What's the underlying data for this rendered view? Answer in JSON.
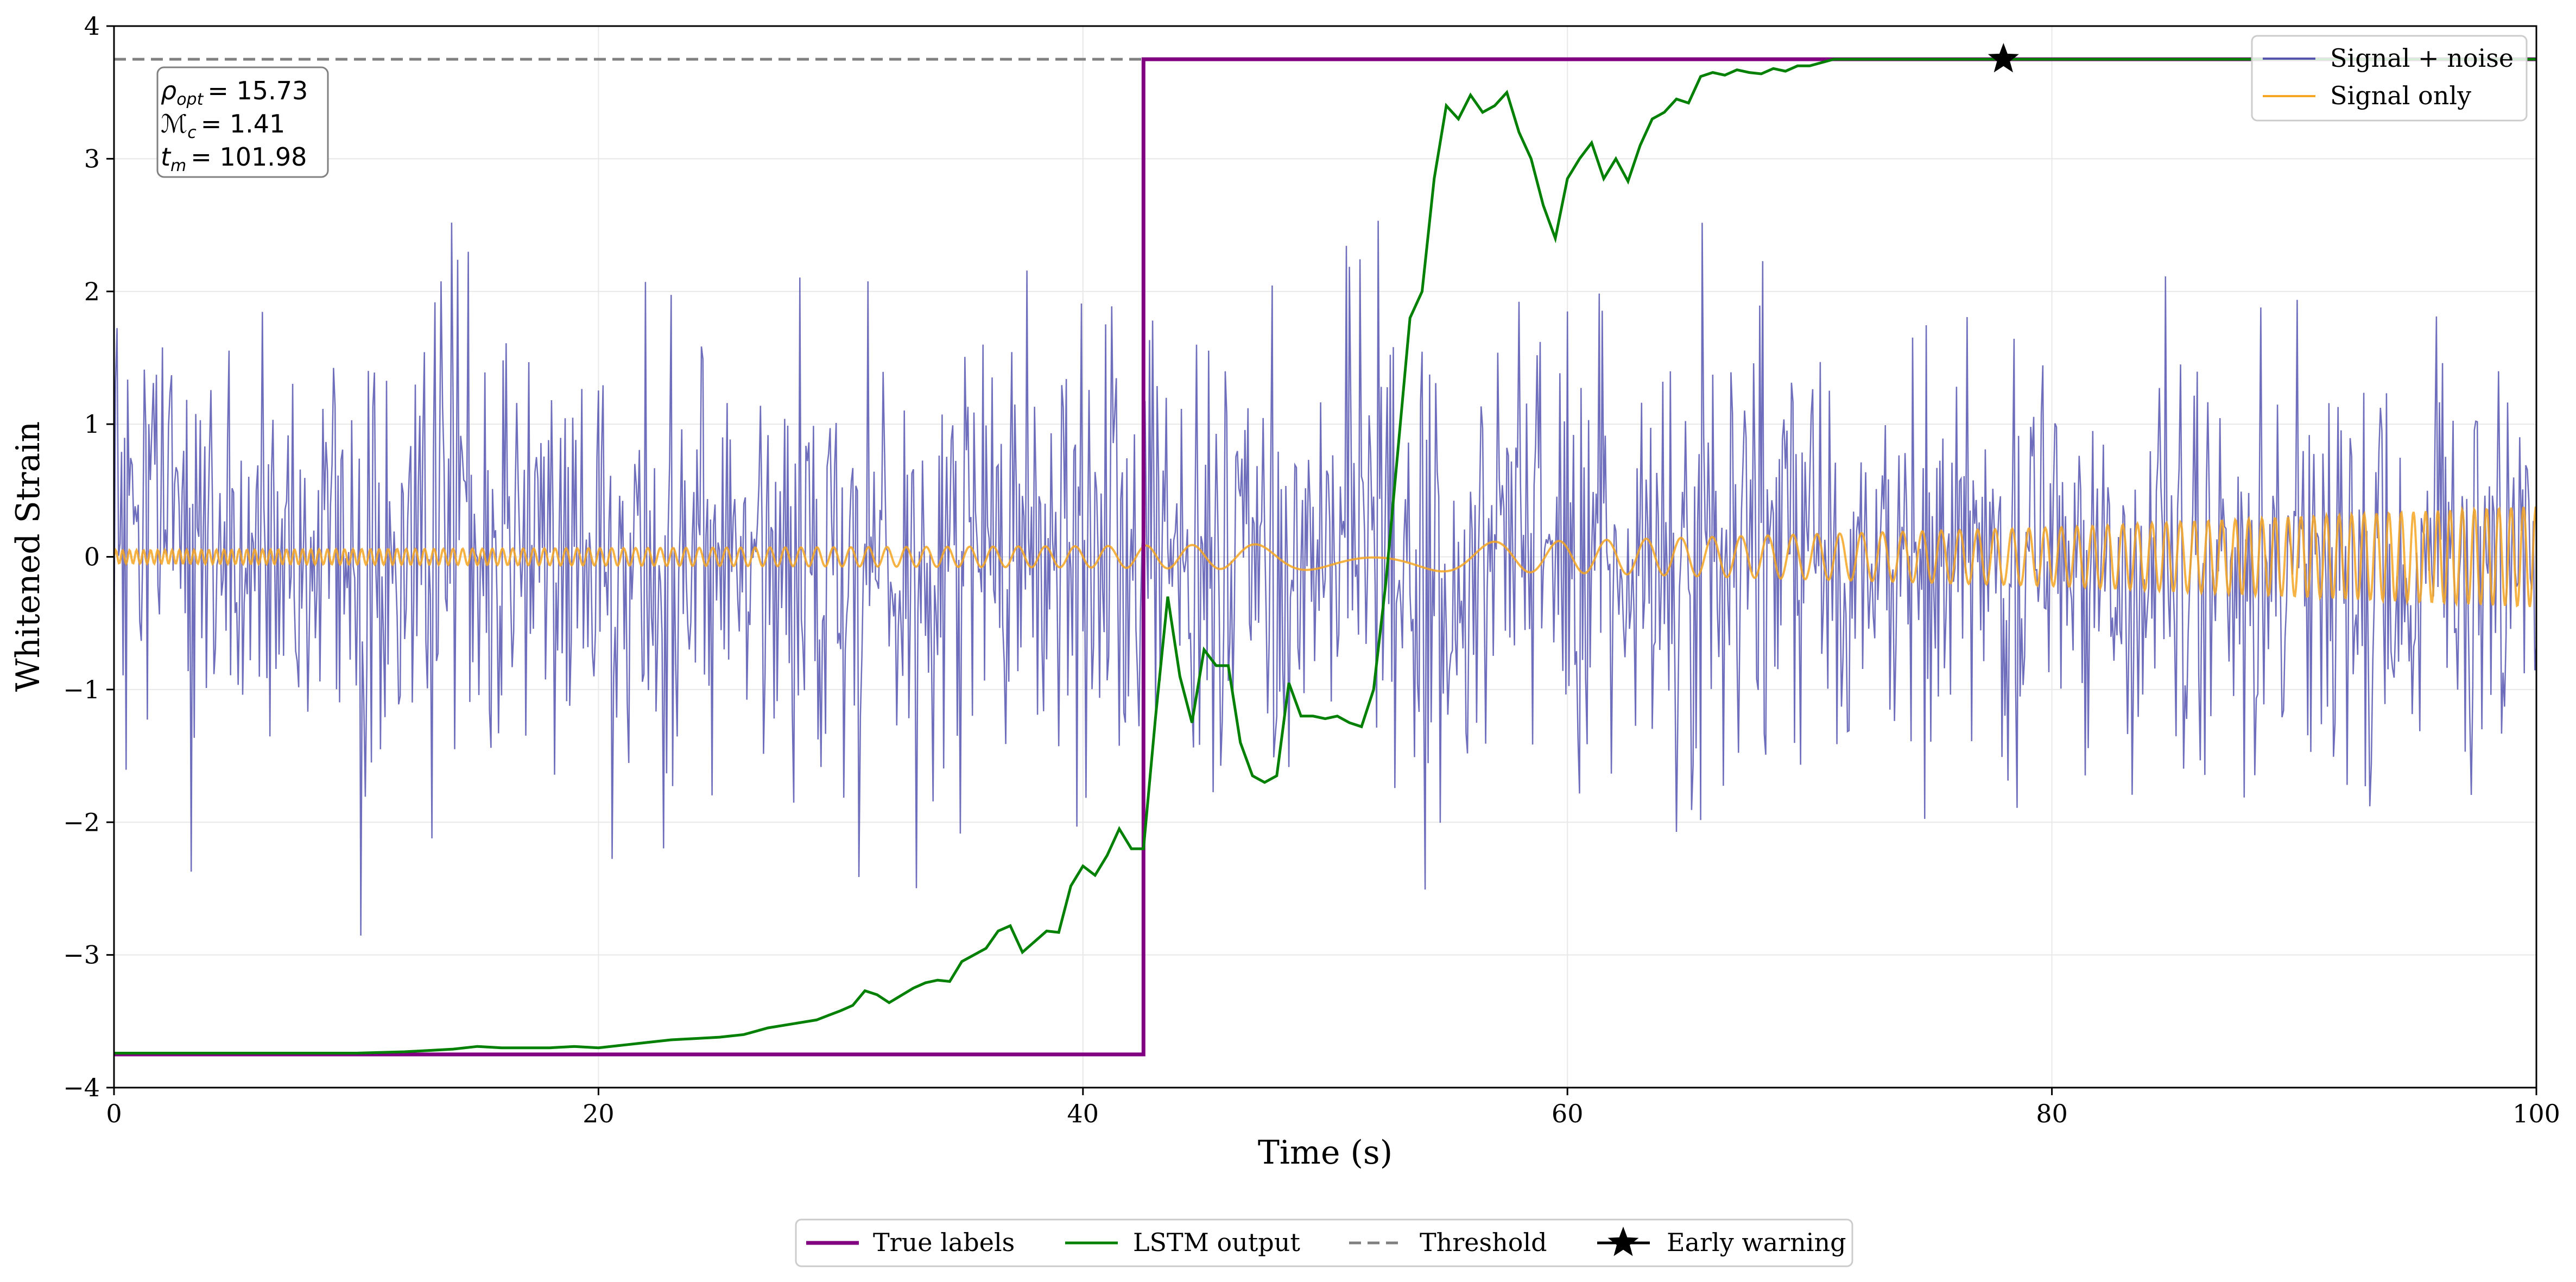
{
  "chart_data": {
    "type": "line",
    "xlabel": "Time (s)",
    "ylabel": "Whitened Strain",
    "xlim": [
      0,
      100
    ],
    "ylim": [
      -4,
      4
    ],
    "xticks": [
      0,
      20,
      40,
      60,
      80,
      100
    ],
    "yticks": [
      -4,
      -3,
      -2,
      -1,
      0,
      1,
      2,
      3,
      4
    ],
    "grid": true,
    "threshold": 3.75,
    "label_levels": [
      -3.75,
      3.75
    ],
    "label_step_time": 42.5,
    "early_warning": {
      "x": 78.0,
      "y": 3.75
    },
    "annotation": {
      "rho_sym": "ρ",
      "rho_sub": "opt",
      "rho_value": "= 15.73",
      "mc_sym": "ℳ",
      "mc_sub": "c",
      "mc_value": "= 1.41",
      "tm_sym": "t",
      "tm_sub": "m",
      "tm_value": "= 101.98"
    },
    "legend_top": [
      {
        "name": "Signal + noise",
        "color": "#5555b0"
      },
      {
        "name": "Signal only",
        "color": "#f5a623"
      }
    ],
    "legend_bottom": [
      {
        "name": "True labels",
        "color": "#800080"
      },
      {
        "name": "LSTM output",
        "color": "#008000"
      },
      {
        "name": "Threshold",
        "color": "#808080"
      },
      {
        "name": "Early warning",
        "color": "#000000"
      }
    ],
    "series": [
      {
        "name": "LSTM output",
        "x": [
          0,
          5,
          10,
          12,
          13,
          14,
          15,
          16,
          17,
          18,
          19,
          20,
          21,
          22,
          23,
          24,
          25,
          26,
          27,
          28,
          29,
          30,
          30.5,
          31,
          31.5,
          32,
          33,
          33.5,
          34,
          34.5,
          35,
          36,
          36.5,
          37,
          37.5,
          38,
          38.5,
          39,
          39.5,
          40,
          40.5,
          41,
          41.5,
          42,
          42.5,
          43,
          43.5,
          44,
          44.5,
          45,
          45.5,
          46,
          46.5,
          47,
          47.5,
          48,
          48.5,
          49,
          49.5,
          50,
          50.5,
          51,
          51.5,
          52,
          52.5,
          53,
          53.5,
          54,
          54.5,
          55,
          55.5,
          56,
          56.5,
          57,
          57.5,
          58,
          58.5,
          59,
          59.5,
          60,
          60.5,
          61,
          61.5,
          62,
          62.5,
          63,
          63.5,
          64,
          64.5,
          65,
          65.5,
          66,
          66.5,
          67,
          67.5,
          68,
          68.5,
          69,
          69.5,
          70,
          71,
          72,
          80,
          100
        ],
        "y": [
          -3.74,
          -3.74,
          -3.74,
          -3.73,
          -3.72,
          -3.71,
          -3.69,
          -3.7,
          -3.7,
          -3.7,
          -3.69,
          -3.7,
          -3.68,
          -3.66,
          -3.64,
          -3.63,
          -3.62,
          -3.6,
          -3.55,
          -3.52,
          -3.49,
          -3.42,
          -3.38,
          -3.27,
          -3.3,
          -3.36,
          -3.25,
          -3.21,
          -3.19,
          -3.2,
          -3.05,
          -2.95,
          -2.82,
          -2.78,
          -2.98,
          -2.9,
          -2.82,
          -2.83,
          -2.48,
          -2.33,
          -2.4,
          -2.25,
          -2.05,
          -2.2,
          -2.2,
          -1.2,
          -0.3,
          -0.9,
          -1.25,
          -0.7,
          -0.82,
          -0.82,
          -1.4,
          -1.65,
          -1.7,
          -1.65,
          -0.95,
          -1.2,
          -1.2,
          -1.22,
          -1.2,
          -1.25,
          -1.28,
          -1.0,
          -0.2,
          0.8,
          1.8,
          2.0,
          2.85,
          3.4,
          3.3,
          3.48,
          3.35,
          3.4,
          3.5,
          3.2,
          3.0,
          2.65,
          2.4,
          2.85,
          3.0,
          3.12,
          2.85,
          3.0,
          2.83,
          3.1,
          3.3,
          3.35,
          3.45,
          3.42,
          3.62,
          3.65,
          3.63,
          3.67,
          3.65,
          3.64,
          3.68,
          3.66,
          3.7,
          3.7,
          3.75,
          3.75,
          3.75,
          3.75
        ]
      },
      {
        "name": "True labels",
        "x": [
          0,
          42.5,
          42.5,
          100
        ],
        "y": [
          -3.75,
          -3.75,
          3.75,
          3.75
        ]
      },
      {
        "name": "Signal + noise",
        "x_range": [
          0,
          100
        ],
        "samples": 1600,
        "noise_std": 0.8,
        "noise_peak_range": [
          -3.1,
          2.56
        ]
      },
      {
        "name": "Signal only",
        "x_range": [
          0,
          100
        ],
        "envelope": [
          [
            0,
            0.05
          ],
          [
            40,
            0.08
          ],
          [
            60,
            0.12
          ],
          [
            80,
            0.22
          ],
          [
            90,
            0.3
          ],
          [
            100,
            0.38
          ]
        ],
        "frequency_trend": "chirp"
      }
    ]
  }
}
